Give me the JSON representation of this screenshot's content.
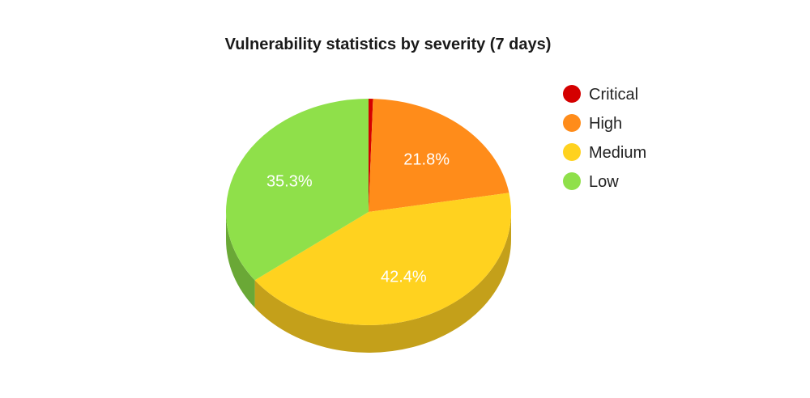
{
  "chart_data": {
    "type": "pie",
    "title": "Vulnerability statistics by severity (7 days)",
    "categories": [
      "Critical",
      "High",
      "Medium",
      "Low"
    ],
    "values": [
      0.5,
      21.8,
      42.4,
      35.3
    ],
    "value_labels": [
      "",
      "21.8%",
      "42.4%",
      "35.3%"
    ],
    "colors": [
      "#d40000",
      "#ff8c1a",
      "#ffd21f",
      "#8fe04a"
    ],
    "side_colors": [
      "#8a0000",
      "#c26a12",
      "#c4a01a",
      "#6aa836"
    ],
    "start_angle_deg": 0,
    "style": "3d",
    "legend_position": "right"
  }
}
